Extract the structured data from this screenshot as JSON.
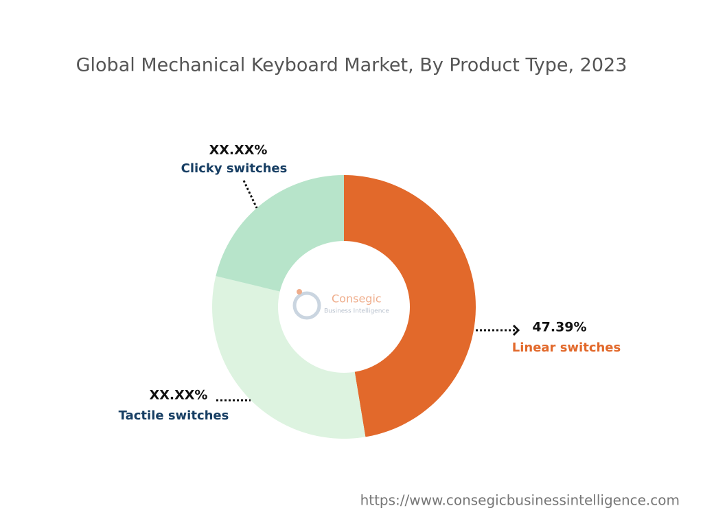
{
  "chart_data": {
    "type": "donut",
    "title": "Global Mechanical Keyboard Market, By Product Type, 2023",
    "categories": [
      "Linear switches",
      "Tactile switches",
      "Clicky switches"
    ],
    "values": [
      47.39,
      31.36,
      21.25
    ],
    "value_labels": [
      "47.39%",
      "XX.XX%",
      "XX.XX%"
    ],
    "colors": [
      "#E2692B",
      "#DDF3E0",
      "#B7E4CA"
    ],
    "label_colors": [
      "#E2692B",
      "#173E63",
      "#173E63"
    ],
    "logo": {
      "name": "Consegic",
      "tagline": "Business Intelligence"
    },
    "source": "https://www.consegicbusinessintelligence.com"
  }
}
